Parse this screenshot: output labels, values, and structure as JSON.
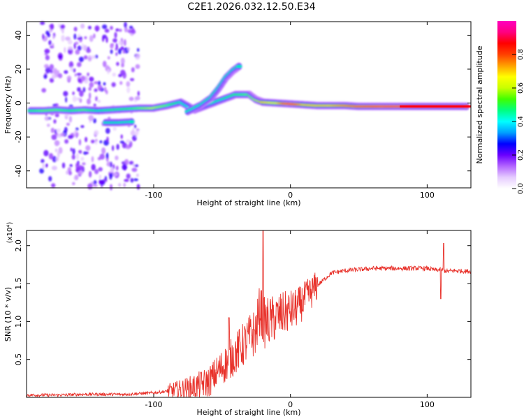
{
  "figure_title": "C2E1.2026.032.12.50.E34",
  "chart_data": [
    {
      "type": "heatmap",
      "title": "C2E1.2026.032.12.50.E34",
      "xlabel": "Height of straight line (km)",
      "ylabel": "Frequency (Hz)",
      "xlim": [
        -193,
        132
      ],
      "ylim": [
        -50,
        48
      ],
      "x_ticks": [
        -100,
        0,
        100
      ],
      "y_ticks": [
        -40,
        -20,
        0,
        20,
        40
      ],
      "colorbar": {
        "label": "Normalized spectral amplitude",
        "range": [
          0,
          1
        ],
        "ticks": [
          "0.0",
          "0.2",
          "0.4",
          "0.6",
          "0.8"
        ],
        "colors": [
          "#ffffff",
          "#e6ccff",
          "#b366ff",
          "#6a00ff",
          "#0000ff",
          "#00a0ff",
          "#00ffff",
          "#00ff80",
          "#40ff00",
          "#c8ff00",
          "#ffff00",
          "#ffa000",
          "#ff4000",
          "#ff0000",
          "#ff0080",
          "#ff00c0"
        ]
      },
      "ridge": [
        {
          "x": -190,
          "f": -4.5,
          "a": 0.5
        },
        {
          "x": -180,
          "f": -4.5,
          "a": 0.55
        },
        {
          "x": -170,
          "f": -4.0,
          "a": 0.55
        },
        {
          "x": -160,
          "f": -4.5,
          "a": 0.5
        },
        {
          "x": -150,
          "f": -4.0,
          "a": 0.55
        },
        {
          "x": -140,
          "f": -4.5,
          "a": 0.45
        },
        {
          "x": -130,
          "f": -4.0,
          "a": 0.5
        },
        {
          "x": -120,
          "f": -3.5,
          "a": 0.5
        },
        {
          "x": -110,
          "f": -3.0,
          "a": 0.55
        },
        {
          "x": -100,
          "f": -3.0,
          "a": 0.6
        },
        {
          "x": -90,
          "f": -1.5,
          "a": 0.55
        },
        {
          "x": -80,
          "f": 0.5,
          "a": 0.45
        },
        {
          "x": -70,
          "f": -4.0,
          "a": 0.4
        },
        {
          "x": -60,
          "f": -1.0,
          "a": 0.45
        },
        {
          "x": -50,
          "f": 2.0,
          "a": 0.45
        },
        {
          "x": -40,
          "f": 5.0,
          "a": 0.5
        },
        {
          "x": -30,
          "f": 5.0,
          "a": 0.55
        },
        {
          "x": -25,
          "f": 2.0,
          "a": 0.6
        },
        {
          "x": -20,
          "f": 0.5,
          "a": 0.7
        },
        {
          "x": -10,
          "f": 0.0,
          "a": 0.65
        },
        {
          "x": 0,
          "f": -0.5,
          "a": 0.9
        },
        {
          "x": 10,
          "f": -1.0,
          "a": 0.7
        },
        {
          "x": 20,
          "f": -1.5,
          "a": 0.7
        },
        {
          "x": 30,
          "f": -1.5,
          "a": 0.7
        },
        {
          "x": 40,
          "f": -1.5,
          "a": 0.75
        },
        {
          "x": 50,
          "f": -2.0,
          "a": 0.8
        },
        {
          "x": 60,
          "f": -2.0,
          "a": 0.85
        },
        {
          "x": 70,
          "f": -2.0,
          "a": 0.9
        },
        {
          "x": 80,
          "f": -2.0,
          "a": 0.9
        },
        {
          "x": 90,
          "f": -2.0,
          "a": 0.95
        },
        {
          "x": 100,
          "f": -2.0,
          "a": 0.95
        },
        {
          "x": 110,
          "f": -2.0,
          "a": 0.95
        },
        {
          "x": 120,
          "f": -2.0,
          "a": 0.95
        },
        {
          "x": 130,
          "f": -2.0,
          "a": 0.95
        }
      ],
      "branches": [
        {
          "name": "rising branch",
          "points": [
            {
              "x": -75,
              "f": -5.0
            },
            {
              "x": -65,
              "f": -1.0
            },
            {
              "x": -58,
              "f": 3.0
            },
            {
              "x": -52,
              "f": 9.0
            },
            {
              "x": -47,
              "f": 15.0
            },
            {
              "x": -42,
              "f": 19.0
            },
            {
              "x": -37,
              "f": 22.0
            }
          ]
        },
        {
          "name": "lower branch",
          "points": [
            {
              "x": -135,
              "f": -11.5
            },
            {
              "x": -125,
              "f": -11.5
            },
            {
              "x": -115,
              "f": -11.0
            }
          ]
        }
      ],
      "scatter_columns_x": [
        -175,
        -160,
        -148,
        -133,
        -118
      ]
    },
    {
      "type": "line",
      "xlabel": "Height of straight line (km)",
      "ylabel": "SNR (10 * v/v)",
      "y_scale_label": "(x10⁴)",
      "y_multiplier": 10000,
      "color": "#e8312a",
      "xlim": [
        -193,
        132
      ],
      "ylim": [
        0,
        2.2
      ],
      "x_ticks": [
        -100,
        0,
        100
      ],
      "y_ticks": [
        0.5,
        1.0,
        1.5,
        2.0
      ],
      "x": [
        -193,
        -170,
        -150,
        -120,
        -100,
        -90,
        -80,
        -70,
        -60,
        -55,
        -50,
        -45,
        -40,
        -35,
        -30,
        -25,
        -22,
        -20,
        -15,
        -10,
        -5,
        0,
        5,
        10,
        20,
        30,
        40,
        60,
        80,
        100,
        105,
        110,
        115,
        120,
        132
      ],
      "y": [
        0.03,
        0.03,
        0.04,
        0.04,
        0.06,
        0.08,
        0.1,
        0.14,
        0.2,
        0.3,
        0.4,
        0.48,
        0.58,
        0.68,
        0.78,
        0.88,
        1.2,
        0.98,
        1.0,
        1.06,
        1.1,
        1.14,
        1.18,
        1.28,
        1.48,
        1.64,
        1.67,
        1.7,
        1.7,
        1.7,
        1.68,
        1.68,
        1.66,
        1.67,
        1.66
      ],
      "spikes": [
        {
          "x": -45,
          "y": 1.05
        },
        {
          "x": -20,
          "y": 2.2
        },
        {
          "x": 110,
          "y": 1.3
        },
        {
          "x": 112,
          "y": 2.03
        }
      ]
    }
  ]
}
